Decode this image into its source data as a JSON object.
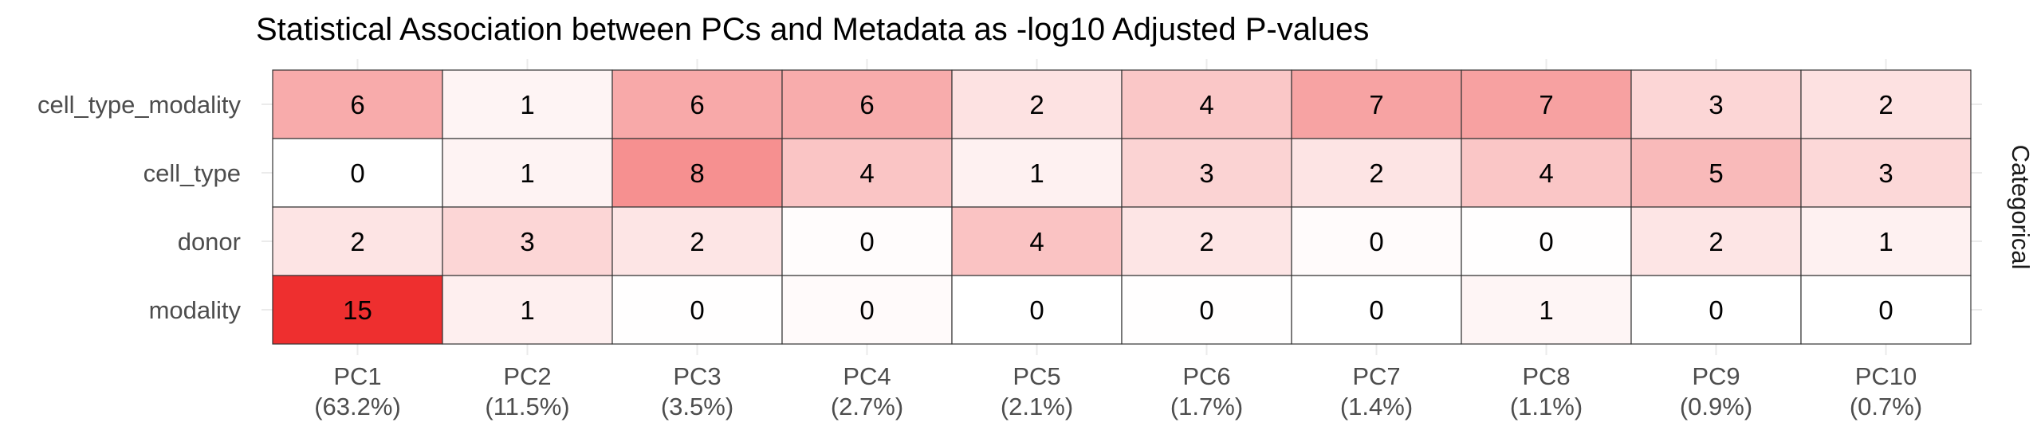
{
  "chart_data": {
    "type": "heatmap",
    "title": "Statistical Association between PCs and Metadata as -log10 Adjusted P-values",
    "facet_label": "Categorical",
    "rows": [
      "cell_type_modality",
      "cell_type",
      "donor",
      "modality"
    ],
    "columns": [
      {
        "name": "PC1",
        "variance": "(63.2%)"
      },
      {
        "name": "PC2",
        "variance": "(11.5%)"
      },
      {
        "name": "PC3",
        "variance": "(3.5%)"
      },
      {
        "name": "PC4",
        "variance": "(2.7%)"
      },
      {
        "name": "PC5",
        "variance": "(2.1%)"
      },
      {
        "name": "PC6",
        "variance": "(1.7%)"
      },
      {
        "name": "PC7",
        "variance": "(1.4%)"
      },
      {
        "name": "PC8",
        "variance": "(1.1%)"
      },
      {
        "name": "PC9",
        "variance": "(0.9%)"
      },
      {
        "name": "PC10",
        "variance": "(0.7%)"
      }
    ],
    "labels": [
      [
        6,
        1,
        6,
        6,
        2,
        4,
        7,
        7,
        3,
        2
      ],
      [
        0,
        1,
        8,
        4,
        1,
        3,
        2,
        4,
        5,
        3
      ],
      [
        2,
        3,
        2,
        0,
        4,
        2,
        0,
        0,
        2,
        1
      ],
      [
        15,
        1,
        0,
        0,
        0,
        0,
        0,
        1,
        0,
        0
      ]
    ],
    "values": [
      [
        6.2,
        0.8,
        6.3,
        6.1,
        2.1,
        4.1,
        6.8,
        6.9,
        3.0,
        2.2
      ],
      [
        0.0,
        0.9,
        8.2,
        4.3,
        1.0,
        3.2,
        2.0,
        4.2,
        5.1,
        2.9
      ],
      [
        2.0,
        3.0,
        1.9,
        0.2,
        4.4,
        1.9,
        0.3,
        0.1,
        1.9,
        1.0
      ],
      [
        15.3,
        1.2,
        0.1,
        0.4,
        0.0,
        0.1,
        0.0,
        0.7,
        0.0,
        0.0
      ]
    ],
    "color_low": "#ffffff",
    "color_high": "#ee2f2f",
    "value_range": [
      0,
      15.3
    ],
    "grid_line_color": "#ebebeb",
    "cell_border_color": "#333333"
  }
}
